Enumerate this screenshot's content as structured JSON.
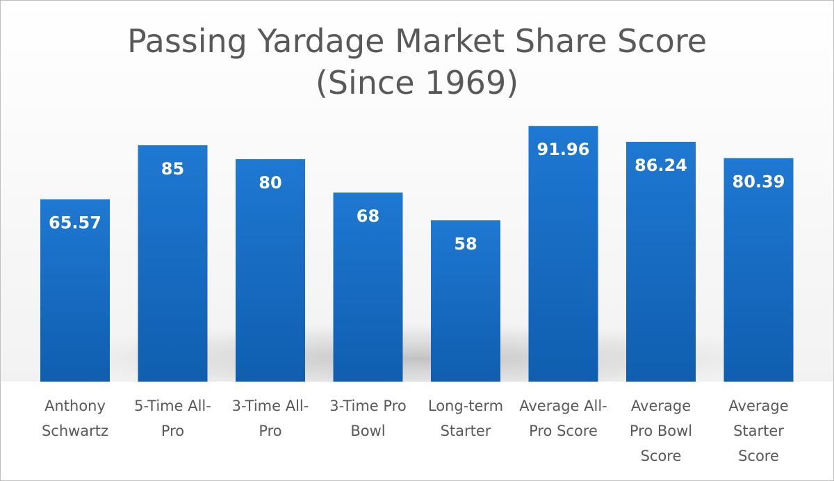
{
  "chart_data": {
    "type": "bar",
    "title_line1": "Passing Yardage Market Share Score",
    "title_line2": "(Since 1969)",
    "xlabel": "",
    "ylabel": "",
    "ylim": [
      0,
      100
    ],
    "grid": false,
    "categories": [
      [
        "Anthony",
        "Schwartz"
      ],
      [
        "5-Time All-",
        "Pro"
      ],
      [
        "3-Time All-",
        "Pro"
      ],
      [
        "3-Time Pro",
        "Bowl"
      ],
      [
        "Long-term",
        "Starter"
      ],
      [
        "Average All-",
        "Pro Score"
      ],
      [
        "Average",
        "Pro Bowl",
        "Score"
      ],
      [
        "Average",
        "Starter",
        "Score"
      ]
    ],
    "values": [
      65.57,
      85,
      80,
      68,
      58,
      91.96,
      86.24,
      80.39
    ],
    "value_labels": [
      "65.57",
      "85",
      "80",
      "68",
      "58",
      "91.96",
      "86.24",
      "80.39"
    ],
    "colors": {
      "bar_top": "#1F78D1",
      "bar_bottom": "#0F5EB0",
      "value_text": "#ffffff",
      "title_text": "#595959",
      "label_text": "#595959"
    }
  }
}
